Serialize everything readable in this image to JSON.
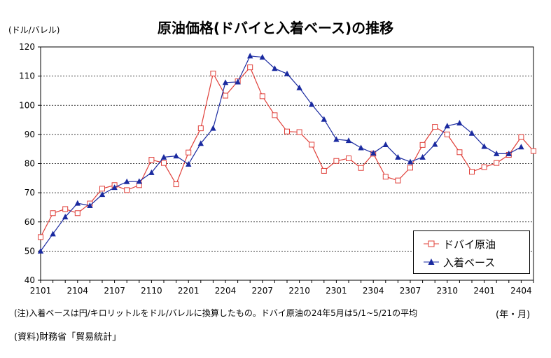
{
  "chart_data": {
    "type": "line",
    "title": "原油価格(ドバイと入着ベース)の推移",
    "ylabel": "(ドル/バレル)",
    "xlabel": "(年・月)",
    "ylim": [
      40,
      120
    ],
    "yticks": [
      40,
      50,
      60,
      70,
      80,
      90,
      100,
      110,
      120
    ],
    "grid": true,
    "legend_position": "bottom-right",
    "x": [
      "2101",
      "2102",
      "2103",
      "2104",
      "2105",
      "2106",
      "2107",
      "2108",
      "2109",
      "2110",
      "2111",
      "2112",
      "2201",
      "2202",
      "2203",
      "2204",
      "2205",
      "2206",
      "2207",
      "2208",
      "2209",
      "2210",
      "2211",
      "2212",
      "2301",
      "2302",
      "2303",
      "2304",
      "2305",
      "2306",
      "2307",
      "2308",
      "2309",
      "2310",
      "2311",
      "2312",
      "2401",
      "2402",
      "2403",
      "2404",
      "2405"
    ],
    "xtick_labels": [
      "2101",
      "2104",
      "2107",
      "2110",
      "2201",
      "2204",
      "2207",
      "2210",
      "2301",
      "2304",
      "2307",
      "2310",
      "2401",
      "2404"
    ],
    "series": [
      {
        "name": "ドバイ原油",
        "color": "#e0403a",
        "marker": "open-square",
        "values": [
          54.8,
          63.0,
          64.4,
          63.0,
          66.3,
          71.4,
          72.6,
          70.9,
          72.6,
          81.3,
          80.2,
          72.9,
          83.8,
          92.1,
          110.9,
          103.3,
          108.2,
          113.0,
          103.1,
          96.6,
          91.0,
          90.8,
          86.5,
          77.5,
          80.9,
          81.8,
          78.5,
          83.4,
          75.5,
          74.2,
          78.6,
          86.4,
          92.6,
          90.0,
          83.9,
          77.2,
          78.8,
          80.2,
          83.0,
          89.1,
          84.3
        ]
      },
      {
        "name": "入着ベース",
        "color": "#1a2aa0",
        "marker": "filled-triangle",
        "values": [
          50.0,
          55.9,
          61.7,
          66.4,
          65.6,
          69.4,
          71.8,
          73.8,
          73.9,
          76.9,
          82.2,
          82.6,
          79.8,
          86.9,
          92.1,
          107.8,
          108.0,
          116.9,
          116.5,
          112.6,
          110.8,
          106.0,
          100.3,
          95.2,
          88.3,
          87.9,
          85.4,
          83.6,
          86.5,
          82.2,
          80.6,
          82.2,
          86.6,
          92.9,
          93.9,
          90.4,
          85.9,
          83.4,
          83.4,
          85.7,
          null
        ]
      }
    ]
  },
  "text": {
    "title": "原油価格(ドバイと入着ベース)の推移",
    "unit": "(ドル/バレル)",
    "period": "(年・月)",
    "note": "(注)入着ベースは円/キロリットルをドル/バレルに換算したもの。ドバイ原油の24年5月は5/1~5/21の平均",
    "source": "(資料)財務省「貿易統計」"
  }
}
